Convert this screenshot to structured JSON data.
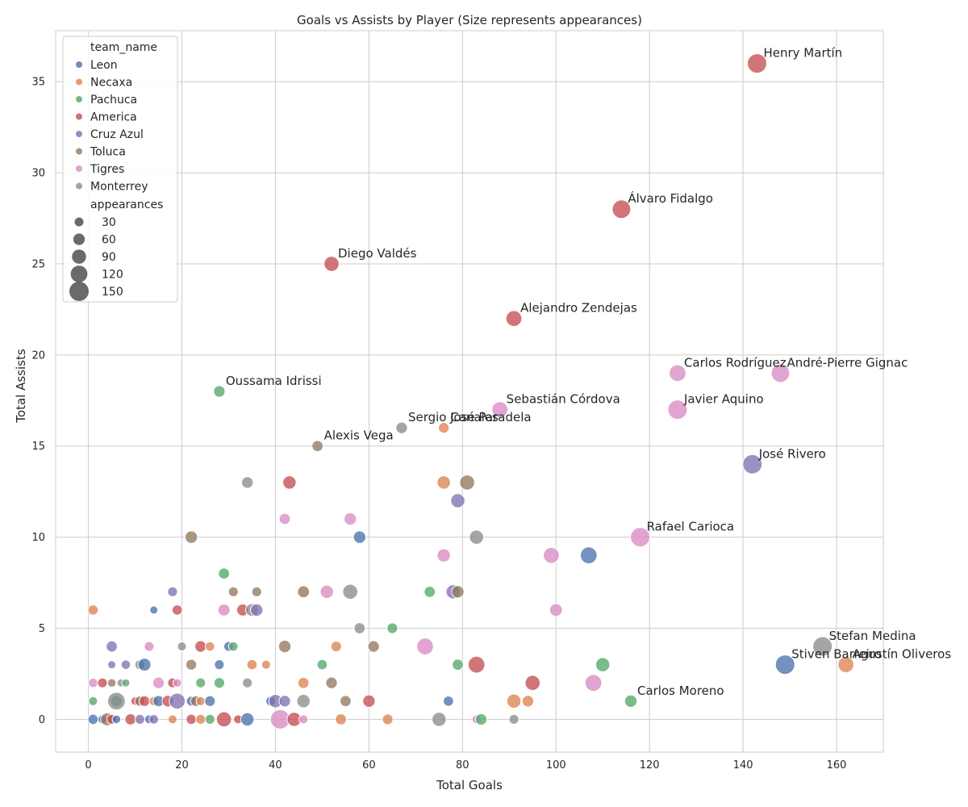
{
  "chart_data": {
    "type": "scatter",
    "title": "Goals vs Assists by Player (Size represents appearances)",
    "xlabel": "Total Goals",
    "ylabel": "Total Assists",
    "xlim": [
      -7,
      170
    ],
    "ylim": [
      -1.8,
      37.8
    ],
    "xticks": [
      0,
      20,
      40,
      60,
      80,
      100,
      120,
      140,
      160
    ],
    "yticks": [
      0,
      5,
      10,
      15,
      20,
      25,
      30,
      35
    ],
    "grid": true,
    "legend_placement": "top-left",
    "hue_legend_title": "team_name",
    "size_legend_title": "appearances",
    "size_legend_values": [
      30,
      60,
      90,
      120,
      150
    ],
    "teams": [
      {
        "name": "Leon",
        "color": "#4c72b0"
      },
      {
        "name": "Necaxa",
        "color": "#dd8452"
      },
      {
        "name": "Pachuca",
        "color": "#55a868"
      },
      {
        "name": "America",
        "color": "#c44e52"
      },
      {
        "name": "Cruz Azul",
        "color": "#8172b3"
      },
      {
        "name": "Toluca",
        "color": "#937860"
      },
      {
        "name": "Tigres",
        "color": "#da8bc3"
      },
      {
        "name": "Monterrey",
        "color": "#8c8c8c"
      }
    ],
    "points": [
      {
        "label": "Henry Martín",
        "team": "America",
        "x": 143,
        "y": 36,
        "size": 150
      },
      {
        "label": "Álvaro Fidalgo",
        "team": "America",
        "x": 114,
        "y": 28,
        "size": 140
      },
      {
        "label": "Diego Valdés",
        "team": "America",
        "x": 52,
        "y": 25,
        "size": 100
      },
      {
        "label": "Alejandro Zendejas",
        "team": "America",
        "x": 91,
        "y": 22,
        "size": 110
      },
      {
        "label": "Carlos Rodríguez",
        "team": "Tigres",
        "x": 126,
        "y": 19,
        "size": 120
      },
      {
        "label": "André-Pierre Gignac",
        "team": "Tigres",
        "x": 148,
        "y": 19,
        "size": 140
      },
      {
        "label": "Oussama Idrissi",
        "team": "Pachuca",
        "x": 28,
        "y": 18,
        "size": 60
      },
      {
        "label": "Sebastián Córdova",
        "team": "Tigres",
        "x": 88,
        "y": 17,
        "size": 110
      },
      {
        "label": "Javier Aquino",
        "team": "Tigres",
        "x": 126,
        "y": 17,
        "size": 150
      },
      {
        "label": "Sergio Canales",
        "team": "Monterrey",
        "x": 67,
        "y": 16,
        "size": 60
      },
      {
        "label": "José Paradela",
        "team": "Necaxa",
        "x": 76,
        "y": 16,
        "size": 50
      },
      {
        "label": "Alexis Vega",
        "team": "Toluca",
        "x": 49,
        "y": 15,
        "size": 55
      },
      {
        "label": "José Rivero",
        "team": "Cruz Azul",
        "x": 142,
        "y": 14,
        "size": 150
      },
      {
        "label": "Rafael Carioca",
        "team": "Tigres",
        "x": 118,
        "y": 10,
        "size": 150
      },
      {
        "label": "Stefan Medina",
        "team": "Monterrey",
        "x": 157,
        "y": 4,
        "size": 150
      },
      {
        "label": "Stiven Barreiro",
        "team": "Leon",
        "x": 149,
        "y": 3,
        "size": 150
      },
      {
        "label": "Agustín Oliveros",
        "team": "Necaxa",
        "x": 162,
        "y": 3,
        "size": 110
      },
      {
        "label": "Carlos Moreno",
        "team": "Pachuca",
        "x": 116,
        "y": 1,
        "size": 70
      },
      {
        "team": "Monterrey",
        "x": 34,
        "y": 13,
        "size": 60
      },
      {
        "team": "America",
        "x": 43,
        "y": 13,
        "size": 80
      },
      {
        "team": "Necaxa",
        "x": 76,
        "y": 13,
        "size": 80
      },
      {
        "team": "Toluca",
        "x": 81,
        "y": 13,
        "size": 100
      },
      {
        "team": "Cruz Azul",
        "x": 79,
        "y": 12,
        "size": 90
      },
      {
        "team": "Tigres",
        "x": 42,
        "y": 11,
        "size": 55
      },
      {
        "team": "Tigres",
        "x": 56,
        "y": 11,
        "size": 70
      },
      {
        "team": "Toluca",
        "x": 22,
        "y": 10,
        "size": 70
      },
      {
        "team": "Leon",
        "x": 58,
        "y": 10,
        "size": 70
      },
      {
        "team": "Monterrey",
        "x": 83,
        "y": 10,
        "size": 90
      },
      {
        "team": "Tigres",
        "x": 76,
        "y": 9,
        "size": 80
      },
      {
        "team": "Tigres",
        "x": 99,
        "y": 9,
        "size": 110
      },
      {
        "team": "Leon",
        "x": 107,
        "y": 9,
        "size": 120
      },
      {
        "team": "Pachuca",
        "x": 29,
        "y": 8,
        "size": 55
      },
      {
        "team": "Cruz Azul",
        "x": 18,
        "y": 7,
        "size": 40
      },
      {
        "team": "Toluca",
        "x": 31,
        "y": 7,
        "size": 40
      },
      {
        "team": "Toluca",
        "x": 36,
        "y": 7,
        "size": 40
      },
      {
        "team": "Toluca",
        "x": 46,
        "y": 7,
        "size": 65
      },
      {
        "team": "Tigres",
        "x": 51,
        "y": 7,
        "size": 80
      },
      {
        "team": "Monterrey",
        "x": 56,
        "y": 7,
        "size": 100
      },
      {
        "team": "Pachuca",
        "x": 73,
        "y": 7,
        "size": 55
      },
      {
        "team": "Cruz Azul",
        "x": 78,
        "y": 7,
        "size": 90
      },
      {
        "team": "Toluca",
        "x": 79,
        "y": 7,
        "size": 70
      },
      {
        "team": "Necaxa",
        "x": 1,
        "y": 6,
        "size": 45
      },
      {
        "team": "Leon",
        "x": 14,
        "y": 6,
        "size": 20
      },
      {
        "team": "America",
        "x": 19,
        "y": 6,
        "size": 45
      },
      {
        "team": "Tigres",
        "x": 29,
        "y": 6,
        "size": 65
      },
      {
        "team": "America",
        "x": 33,
        "y": 6,
        "size": 65
      },
      {
        "team": "Monterrey",
        "x": 35,
        "y": 6,
        "size": 75
      },
      {
        "team": "Cruz Azul",
        "x": 36,
        "y": 6,
        "size": 70
      },
      {
        "team": "Tigres",
        "x": 100,
        "y": 6,
        "size": 75
      },
      {
        "team": "Monterrey",
        "x": 58,
        "y": 5,
        "size": 55
      },
      {
        "team": "Pachuca",
        "x": 65,
        "y": 5,
        "size": 50
      },
      {
        "team": "Cruz Azul",
        "x": 5,
        "y": 4,
        "size": 55
      },
      {
        "team": "Tigres",
        "x": 13,
        "y": 4,
        "size": 40
      },
      {
        "team": "Monterrey",
        "x": 20,
        "y": 4,
        "size": 30
      },
      {
        "team": "America",
        "x": 24,
        "y": 4,
        "size": 60
      },
      {
        "team": "Necaxa",
        "x": 26,
        "y": 4,
        "size": 35
      },
      {
        "team": "Leon",
        "x": 30,
        "y": 4,
        "size": 40
      },
      {
        "team": "Pachuca",
        "x": 31,
        "y": 4,
        "size": 35
      },
      {
        "team": "Toluca",
        "x": 42,
        "y": 4,
        "size": 70
      },
      {
        "team": "Necaxa",
        "x": 53,
        "y": 4,
        "size": 50
      },
      {
        "team": "Toluca",
        "x": 61,
        "y": 4,
        "size": 60
      },
      {
        "team": "Tigres",
        "x": 72,
        "y": 4,
        "size": 120
      },
      {
        "team": "Cruz Azul",
        "x": 5,
        "y": 3,
        "size": 20
      },
      {
        "team": "Cruz Azul",
        "x": 8,
        "y": 3,
        "size": 35
      },
      {
        "team": "Monterrey",
        "x": 11,
        "y": 3,
        "size": 40
      },
      {
        "team": "Leon",
        "x": 12,
        "y": 3,
        "size": 75
      },
      {
        "team": "Toluca",
        "x": 22,
        "y": 3,
        "size": 50
      },
      {
        "team": "Leon",
        "x": 28,
        "y": 3,
        "size": 40
      },
      {
        "team": "Necaxa",
        "x": 35,
        "y": 3,
        "size": 45
      },
      {
        "team": "Necaxa",
        "x": 38,
        "y": 3,
        "size": 30
      },
      {
        "team": "Pachuca",
        "x": 50,
        "y": 3,
        "size": 45
      },
      {
        "team": "Pachuca",
        "x": 79,
        "y": 3,
        "size": 55
      },
      {
        "team": "America",
        "x": 83,
        "y": 3,
        "size": 120
      },
      {
        "team": "Pachuca",
        "x": 110,
        "y": 3,
        "size": 90
      },
      {
        "team": "Tigres",
        "x": 1,
        "y": 2,
        "size": 35
      },
      {
        "team": "America",
        "x": 3,
        "y": 2,
        "size": 40
      },
      {
        "team": "Toluca",
        "x": 5,
        "y": 2,
        "size": 25
      },
      {
        "team": "Monterrey",
        "x": 7,
        "y": 2,
        "size": 20
      },
      {
        "team": "Pachuca",
        "x": 8,
        "y": 2,
        "size": 20
      },
      {
        "team": "Tigres",
        "x": 15,
        "y": 2,
        "size": 60
      },
      {
        "team": "America",
        "x": 18,
        "y": 2,
        "size": 40
      },
      {
        "team": "Tigres",
        "x": 19,
        "y": 2,
        "size": 25
      },
      {
        "team": "Pachuca",
        "x": 24,
        "y": 2,
        "size": 40
      },
      {
        "team": "Pachuca",
        "x": 28,
        "y": 2,
        "size": 50
      },
      {
        "team": "Monterrey",
        "x": 34,
        "y": 2,
        "size": 40
      },
      {
        "team": "Necaxa",
        "x": 46,
        "y": 2,
        "size": 55
      },
      {
        "team": "Toluca",
        "x": 52,
        "y": 2,
        "size": 60
      },
      {
        "team": "America",
        "x": 95,
        "y": 2,
        "size": 100
      },
      {
        "team": "Tigres",
        "x": 108,
        "y": 2,
        "size": 120
      },
      {
        "team": "Pachuca",
        "x": 1,
        "y": 1,
        "size": 30
      },
      {
        "team": "Pachuca",
        "x": 6,
        "y": 1,
        "size": 60
      },
      {
        "team": "Monterrey",
        "x": 6,
        "y": 1,
        "size": 130
      },
      {
        "team": "America",
        "x": 10,
        "y": 1,
        "size": 25
      },
      {
        "team": "Toluca",
        "x": 11,
        "y": 1,
        "size": 45
      },
      {
        "team": "America",
        "x": 12,
        "y": 1,
        "size": 50
      },
      {
        "team": "Necaxa",
        "x": 14,
        "y": 1,
        "size": 35
      },
      {
        "team": "Leon",
        "x": 15,
        "y": 1,
        "size": 55
      },
      {
        "team": "America",
        "x": 17,
        "y": 1,
        "size": 60
      },
      {
        "team": "Cruz Azul",
        "x": 19,
        "y": 1,
        "size": 110
      },
      {
        "team": "Leon",
        "x": 22,
        "y": 1,
        "size": 40
      },
      {
        "team": "Toluca",
        "x": 23,
        "y": 1,
        "size": 50
      },
      {
        "team": "Necaxa",
        "x": 24,
        "y": 1,
        "size": 30
      },
      {
        "team": "Leon",
        "x": 26,
        "y": 1,
        "size": 50
      },
      {
        "team": "Leon",
        "x": 39,
        "y": 1,
        "size": 40
      },
      {
        "team": "Cruz Azul",
        "x": 40,
        "y": 1,
        "size": 80
      },
      {
        "team": "Cruz Azul",
        "x": 42,
        "y": 1,
        "size": 60
      },
      {
        "team": "Monterrey",
        "x": 46,
        "y": 1,
        "size": 80
      },
      {
        "team": "Toluca",
        "x": 55,
        "y": 1,
        "size": 55
      },
      {
        "team": "America",
        "x": 60,
        "y": 1,
        "size": 70
      },
      {
        "team": "Leon",
        "x": 77,
        "y": 1,
        "size": 45
      },
      {
        "team": "Necaxa",
        "x": 91,
        "y": 1,
        "size": 90
      },
      {
        "team": "Necaxa",
        "x": 94,
        "y": 1,
        "size": 60
      },
      {
        "team": "Leon",
        "x": 1,
        "y": 0,
        "size": 45
      },
      {
        "team": "Leon",
        "x": 3,
        "y": 0,
        "size": 30
      },
      {
        "team": "Toluca",
        "x": 4,
        "y": 0,
        "size": 75
      },
      {
        "team": "America",
        "x": 5,
        "y": 0,
        "size": 40
      },
      {
        "team": "Leon",
        "x": 6,
        "y": 0,
        "size": 25
      },
      {
        "team": "America",
        "x": 9,
        "y": 0,
        "size": 55
      },
      {
        "team": "Cruz Azul",
        "x": 11,
        "y": 0,
        "size": 40
      },
      {
        "team": "Leon",
        "x": 13,
        "y": 0,
        "size": 30
      },
      {
        "team": "Cruz Azul",
        "x": 14,
        "y": 0,
        "size": 35
      },
      {
        "team": "Necaxa",
        "x": 18,
        "y": 0,
        "size": 30
      },
      {
        "team": "America",
        "x": 22,
        "y": 0,
        "size": 45
      },
      {
        "team": "Necaxa",
        "x": 24,
        "y": 0,
        "size": 40
      },
      {
        "team": "Pachuca",
        "x": 26,
        "y": 0,
        "size": 40
      },
      {
        "team": "America",
        "x": 29,
        "y": 0,
        "size": 100
      },
      {
        "team": "America",
        "x": 32,
        "y": 0,
        "size": 30
      },
      {
        "team": "Leon",
        "x": 34,
        "y": 0,
        "size": 80
      },
      {
        "team": "Tigres",
        "x": 41,
        "y": 0,
        "size": 150
      },
      {
        "team": "America",
        "x": 44,
        "y": 0,
        "size": 90
      },
      {
        "team": "Tigres",
        "x": 46,
        "y": 0,
        "size": 30
      },
      {
        "team": "Necaxa",
        "x": 54,
        "y": 0,
        "size": 55
      },
      {
        "team": "Necaxa",
        "x": 64,
        "y": 0,
        "size": 50
      },
      {
        "team": "Monterrey",
        "x": 75,
        "y": 0,
        "size": 90
      },
      {
        "team": "Tigres",
        "x": 83,
        "y": 0,
        "size": 30
      },
      {
        "team": "Pachuca",
        "x": 84,
        "y": 0,
        "size": 60
      },
      {
        "team": "Monterrey",
        "x": 91,
        "y": 0,
        "size": 40
      }
    ]
  }
}
